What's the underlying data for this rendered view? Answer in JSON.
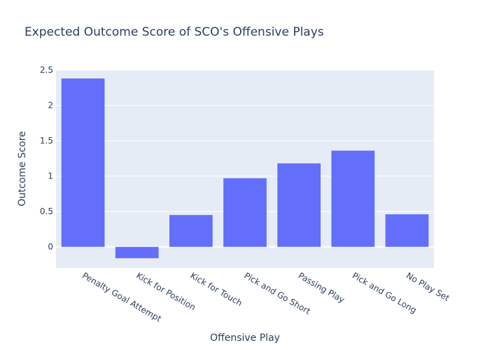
{
  "chart_data": {
    "type": "bar",
    "title": "Expected Outcome Score of SCO's Offensive Plays",
    "xlabel": "Offensive Play",
    "ylabel": "Outcome Score",
    "categories": [
      "Penalty Goal Attempt",
      "Kick for Position",
      "Kick for Touch",
      "Pick and Go Short",
      "Passing Play",
      "Pick and Go Long",
      "No Play Set"
    ],
    "values": [
      2.38,
      -0.16,
      0.45,
      0.97,
      1.18,
      1.36,
      0.46
    ],
    "ylim": [
      -0.3,
      2.5
    ],
    "yticks": [
      "0",
      "0.5",
      "1",
      "1.5",
      "2",
      "2.5"
    ],
    "grid": true,
    "colors": {
      "bar": "#636efa",
      "plot_bg": "#e5ecf6",
      "grid": "#ffffff",
      "text": "#2a3f5f"
    }
  }
}
